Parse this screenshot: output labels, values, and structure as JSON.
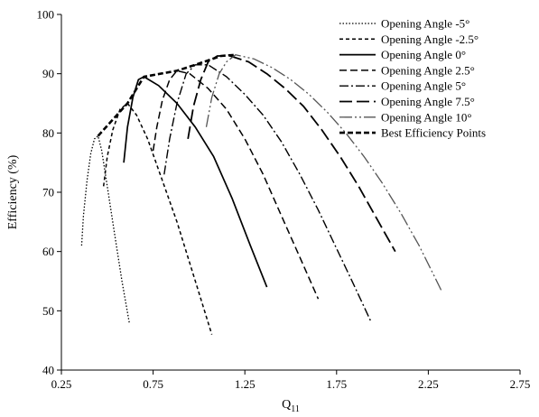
{
  "chart_data": {
    "type": "line",
    "xlabel": "Q",
    "xlabel_sub": "11",
    "ylabel": "Efficiency (%)",
    "xlim": [
      0.25,
      2.75
    ],
    "ylim": [
      40,
      100
    ],
    "xticks": [
      "0.25",
      "0.75",
      "1.25",
      "1.75",
      "2.25",
      "2.75"
    ],
    "yticks": [
      "40",
      "50",
      "60",
      "70",
      "80",
      "90",
      "100"
    ],
    "grid": false,
    "legend_position": "top-right",
    "series": [
      {
        "name": "Opening Angle -5°",
        "dash": "1.5,2",
        "stroke_width": 1.3,
        "color": "#000000",
        "points": [
          [
            0.36,
            61
          ],
          [
            0.37,
            66
          ],
          [
            0.39,
            72
          ],
          [
            0.41,
            76.5
          ],
          [
            0.43,
            79
          ],
          [
            0.45,
            79.5
          ],
          [
            0.47,
            77
          ],
          [
            0.5,
            71
          ],
          [
            0.54,
            63
          ],
          [
            0.58,
            55
          ],
          [
            0.62,
            48
          ]
        ]
      },
      {
        "name": "Opening Angle -2.5°",
        "dash": "4,3",
        "stroke_width": 1.5,
        "color": "#000000",
        "points": [
          [
            0.48,
            71
          ],
          [
            0.5,
            76
          ],
          [
            0.53,
            80.5
          ],
          [
            0.57,
            84
          ],
          [
            0.61,
            85
          ],
          [
            0.66,
            83
          ],
          [
            0.72,
            79
          ],
          [
            0.8,
            72
          ],
          [
            0.88,
            65
          ],
          [
            0.96,
            57
          ],
          [
            1.02,
            51
          ],
          [
            1.07,
            46
          ]
        ]
      },
      {
        "name": "Opening Angle 0°",
        "dash": "",
        "stroke_width": 1.7,
        "color": "#000000",
        "points": [
          [
            0.59,
            75
          ],
          [
            0.61,
            81
          ],
          [
            0.64,
            86
          ],
          [
            0.67,
            89
          ],
          [
            0.7,
            89.5
          ],
          [
            0.78,
            88
          ],
          [
            0.88,
            85
          ],
          [
            0.98,
            81
          ],
          [
            1.08,
            76
          ],
          [
            1.18,
            69
          ],
          [
            1.28,
            61
          ],
          [
            1.37,
            54
          ]
        ]
      },
      {
        "name": "Opening Angle 2.5°",
        "dash": "8,4",
        "stroke_width": 1.5,
        "color": "#000000",
        "points": [
          [
            0.75,
            77
          ],
          [
            0.77,
            81
          ],
          [
            0.8,
            85.5
          ],
          [
            0.84,
            89
          ],
          [
            0.88,
            90.5
          ],
          [
            0.95,
            90
          ],
          [
            1.05,
            87.5
          ],
          [
            1.15,
            84
          ],
          [
            1.25,
            79
          ],
          [
            1.35,
            73
          ],
          [
            1.45,
            66
          ],
          [
            1.55,
            59
          ],
          [
            1.65,
            52
          ]
        ]
      },
      {
        "name": "Opening Angle 5°",
        "dash": "10,3,2,3",
        "stroke_width": 1.4,
        "color": "#000000",
        "points": [
          [
            0.81,
            73
          ],
          [
            0.84,
            79
          ],
          [
            0.88,
            85
          ],
          [
            0.93,
            90
          ],
          [
            0.98,
            91.5
          ],
          [
            1.05,
            91.5
          ],
          [
            1.15,
            89.5
          ],
          [
            1.25,
            86.5
          ],
          [
            1.35,
            83
          ],
          [
            1.45,
            78.5
          ],
          [
            1.55,
            73
          ],
          [
            1.65,
            67
          ],
          [
            1.75,
            60.5
          ],
          [
            1.85,
            54
          ],
          [
            1.94,
            48
          ]
        ]
      },
      {
        "name": "Opening Angle 7.5°",
        "dash": "14,5",
        "stroke_width": 1.8,
        "color": "#000000",
        "points": [
          [
            0.94,
            79
          ],
          [
            0.97,
            84.5
          ],
          [
            1.01,
            89
          ],
          [
            1.05,
            92
          ],
          [
            1.1,
            93
          ],
          [
            1.17,
            93
          ],
          [
            1.27,
            92
          ],
          [
            1.37,
            90
          ],
          [
            1.47,
            87.5
          ],
          [
            1.57,
            84.5
          ],
          [
            1.67,
            80.5
          ],
          [
            1.77,
            76
          ],
          [
            1.87,
            71
          ],
          [
            1.97,
            65.5
          ],
          [
            2.07,
            60
          ]
        ]
      },
      {
        "name": "Opening Angle 10°",
        "dash": "14,3,2,3,2,3",
        "stroke_width": 1.3,
        "color": "#555555",
        "points": [
          [
            1.04,
            81
          ],
          [
            1.07,
            86
          ],
          [
            1.11,
            90
          ],
          [
            1.15,
            92
          ],
          [
            1.2,
            93.2
          ],
          [
            1.3,
            92.5
          ],
          [
            1.4,
            91
          ],
          [
            1.5,
            89
          ],
          [
            1.6,
            86.5
          ],
          [
            1.7,
            83.5
          ],
          [
            1.8,
            80
          ],
          [
            1.9,
            76
          ],
          [
            2.0,
            71.5
          ],
          [
            2.1,
            66.5
          ],
          [
            2.2,
            61
          ],
          [
            2.28,
            56
          ],
          [
            2.32,
            53.5
          ]
        ]
      },
      {
        "name": "Best Efficiency Points",
        "dash": "6,3",
        "stroke_width": 2.6,
        "color": "#000000",
        "points": [
          [
            0.45,
            79.5
          ],
          [
            0.61,
            85
          ],
          [
            0.7,
            89.5
          ],
          [
            0.88,
            90.5
          ],
          [
            0.98,
            91.5
          ],
          [
            1.12,
            93
          ],
          [
            1.2,
            93.2
          ]
        ]
      }
    ]
  }
}
